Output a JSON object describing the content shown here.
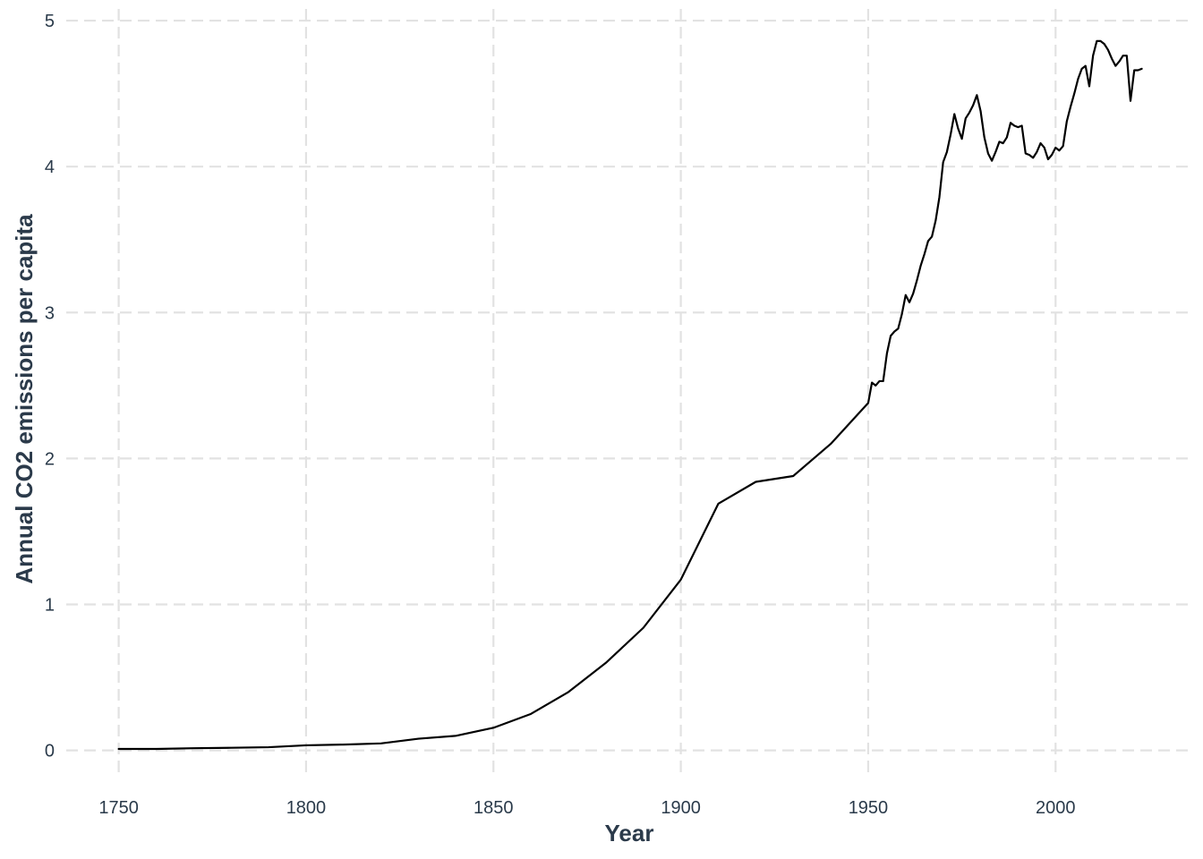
{
  "chart_data": {
    "type": "line",
    "title": "",
    "xlabel": "Year",
    "ylabel": "Annual CO2 emissions per capita",
    "xlim": [
      1736,
      2036
    ],
    "ylim": [
      -0.18,
      5.08
    ],
    "xticks": [
      1750,
      1800,
      1850,
      1900,
      1950,
      2000
    ],
    "yticks": [
      0,
      1,
      2,
      3,
      4,
      5
    ],
    "grid": true,
    "grid_style": "dashed",
    "line_color": "#000000",
    "grid_color": "#e2e2e2",
    "series": [
      {
        "x": [
          1750,
          1760,
          1770,
          1780,
          1790,
          1800,
          1810,
          1820,
          1830,
          1840,
          1850,
          1860,
          1870,
          1880,
          1890,
          1900,
          1910,
          1920,
          1930,
          1940,
          1950,
          1951,
          1952,
          1953,
          1954,
          1955,
          1956,
          1957,
          1958,
          1959,
          1960,
          1961,
          1962,
          1963,
          1964,
          1965,
          1966,
          1967,
          1968,
          1969,
          1970,
          1971,
          1972,
          1973,
          1974,
          1975,
          1976,
          1977,
          1978,
          1979,
          1980,
          1981,
          1982,
          1983,
          1984,
          1985,
          1986,
          1987,
          1988,
          1989,
          1990,
          1991,
          1992,
          1993,
          1994,
          1995,
          1996,
          1997,
          1998,
          1999,
          2000,
          2001,
          2002,
          2003,
          2004,
          2005,
          2006,
          2007,
          2008,
          2009,
          2010,
          2011,
          2012,
          2013,
          2014,
          2015,
          2016,
          2017,
          2018,
          2019,
          2020,
          2021,
          2022,
          2023
        ],
        "y": [
          0.01,
          0.01,
          0.015,
          0.018,
          0.022,
          0.035,
          0.04,
          0.048,
          0.08,
          0.1,
          0.155,
          0.25,
          0.4,
          0.6,
          0.84,
          1.17,
          1.69,
          1.84,
          1.88,
          2.1,
          2.38,
          2.52,
          2.5,
          2.53,
          2.53,
          2.72,
          2.84,
          2.87,
          2.89,
          2.99,
          3.12,
          3.07,
          3.13,
          3.22,
          3.32,
          3.4,
          3.49,
          3.52,
          3.63,
          3.79,
          4.03,
          4.1,
          4.22,
          4.36,
          4.26,
          4.19,
          4.33,
          4.37,
          4.42,
          4.49,
          4.38,
          4.2,
          4.09,
          4.04,
          4.1,
          4.17,
          4.16,
          4.2,
          4.3,
          4.28,
          4.27,
          4.28,
          4.09,
          4.08,
          4.06,
          4.1,
          4.16,
          4.13,
          4.05,
          4.08,
          4.13,
          4.11,
          4.14,
          4.31,
          4.41,
          4.5,
          4.6,
          4.67,
          4.69,
          4.55,
          4.76,
          4.86,
          4.86,
          4.84,
          4.8,
          4.74,
          4.69,
          4.72,
          4.76,
          4.76,
          4.45,
          4.66,
          4.66,
          4.67
        ]
      }
    ]
  }
}
